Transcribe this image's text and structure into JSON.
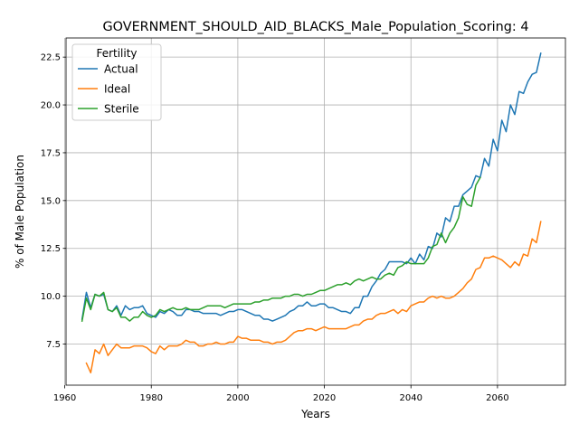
{
  "chart_data": {
    "type": "line",
    "title": "GOVERNMENT_SHOULD_AID_BLACKS_Male_Population_Scoring: 4",
    "xlabel": "Years",
    "ylabel": "% of Male Population",
    "xlim": [
      1960.3,
      2075.7
    ],
    "ylim": [
      5.35,
      23.5
    ],
    "x_ticks": [
      1960,
      1980,
      2000,
      2020,
      2040,
      2060
    ],
    "x_tick_labels": [
      "1960",
      "1980",
      "2000",
      "2020",
      "2040",
      "2060"
    ],
    "y_ticks": [
      7.5,
      10.0,
      12.5,
      15.0,
      17.5,
      20.0,
      22.5
    ],
    "y_tick_labels": [
      "7.5",
      "10.0",
      "12.5",
      "15.0",
      "17.5",
      "20.0",
      "22.5"
    ],
    "grid": true,
    "legend": {
      "title": "Fertility",
      "placement": "top-left"
    },
    "series": [
      {
        "name": "Actual",
        "color": "#1f77b4",
        "x_start": 1964,
        "values": [
          8.8,
          10.2,
          9.4,
          10.1,
          10.0,
          10.1,
          9.3,
          9.2,
          9.5,
          9.0,
          9.5,
          9.3,
          9.4,
          9.4,
          9.5,
          9.1,
          9.0,
          8.9,
          9.2,
          9.1,
          9.3,
          9.2,
          9.0,
          9.0,
          9.3,
          9.3,
          9.2,
          9.2,
          9.1,
          9.1,
          9.1,
          9.1,
          9.0,
          9.1,
          9.2,
          9.2,
          9.3,
          9.3,
          9.2,
          9.1,
          9.0,
          9.0,
          8.8,
          8.8,
          8.7,
          8.8,
          8.9,
          9.0,
          9.2,
          9.3,
          9.5,
          9.5,
          9.7,
          9.5,
          9.5,
          9.6,
          9.6,
          9.4,
          9.4,
          9.3,
          9.2,
          9.2,
          9.1,
          9.4,
          9.4,
          10.0,
          10.0,
          10.5,
          10.8,
          11.2,
          11.4,
          11.8,
          11.8,
          11.8,
          11.8,
          11.7,
          12.0,
          11.7,
          12.2,
          11.9,
          12.6,
          12.5,
          13.3,
          13.1,
          14.1,
          13.9,
          14.7,
          14.7,
          15.3,
          15.5,
          15.7,
          16.3,
          16.2,
          17.2,
          16.8,
          18.2,
          17.6,
          19.2,
          18.6,
          20.0,
          19.5,
          20.7,
          20.6,
          21.2,
          21.6,
          21.7,
          22.7
        ]
      },
      {
        "name": "Ideal",
        "color": "#ff7f0e",
        "x_start": 1965,
        "values": [
          6.5,
          6.0,
          7.2,
          7.0,
          7.5,
          6.9,
          7.2,
          7.5,
          7.3,
          7.3,
          7.3,
          7.4,
          7.4,
          7.4,
          7.3,
          7.1,
          7.0,
          7.4,
          7.2,
          7.4,
          7.4,
          7.4,
          7.5,
          7.7,
          7.6,
          7.6,
          7.4,
          7.4,
          7.5,
          7.5,
          7.6,
          7.5,
          7.5,
          7.6,
          7.6,
          7.9,
          7.8,
          7.8,
          7.7,
          7.7,
          7.7,
          7.6,
          7.6,
          7.5,
          7.6,
          7.6,
          7.7,
          7.9,
          8.1,
          8.2,
          8.2,
          8.3,
          8.3,
          8.2,
          8.3,
          8.4,
          8.3,
          8.3,
          8.3,
          8.3,
          8.3,
          8.4,
          8.5,
          8.5,
          8.7,
          8.8,
          8.8,
          9.0,
          9.1,
          9.1,
          9.2,
          9.3,
          9.1,
          9.3,
          9.2,
          9.5,
          9.6,
          9.7,
          9.7,
          9.9,
          10.0,
          9.9,
          10.0,
          9.9,
          9.9,
          10.0,
          10.2,
          10.4,
          10.7,
          10.9,
          11.4,
          11.5,
          12.0,
          12.0,
          12.1,
          12.0,
          11.9,
          11.7,
          11.5,
          11.8,
          11.6,
          12.2,
          12.1,
          13.0,
          12.8,
          13.9
        ]
      },
      {
        "name": "Sterile",
        "color": "#2ca02c",
        "x_start": 1964,
        "values": [
          8.7,
          9.9,
          9.3,
          10.1,
          10.0,
          10.2,
          9.3,
          9.2,
          9.4,
          8.9,
          8.9,
          8.7,
          8.9,
          8.9,
          9.2,
          9.0,
          8.9,
          9.0,
          9.3,
          9.2,
          9.3,
          9.4,
          9.3,
          9.3,
          9.4,
          9.3,
          9.3,
          9.3,
          9.4,
          9.5,
          9.5,
          9.5,
          9.5,
          9.4,
          9.5,
          9.6,
          9.6,
          9.6,
          9.6,
          9.6,
          9.7,
          9.7,
          9.8,
          9.8,
          9.9,
          9.9,
          9.9,
          10.0,
          10.0,
          10.1,
          10.1,
          10.0,
          10.1,
          10.1,
          10.2,
          10.3,
          10.3,
          10.4,
          10.5,
          10.6,
          10.6,
          10.7,
          10.6,
          10.8,
          10.9,
          10.8,
          10.9,
          11.0,
          10.9,
          10.9,
          11.1,
          11.2,
          11.1,
          11.5,
          11.6,
          11.8,
          11.7,
          11.7,
          11.7,
          11.7,
          12.0,
          12.6,
          12.7,
          13.3,
          12.8,
          13.3,
          13.6,
          14.1,
          15.2,
          14.8,
          14.7,
          15.8,
          16.2
        ]
      }
    ]
  }
}
